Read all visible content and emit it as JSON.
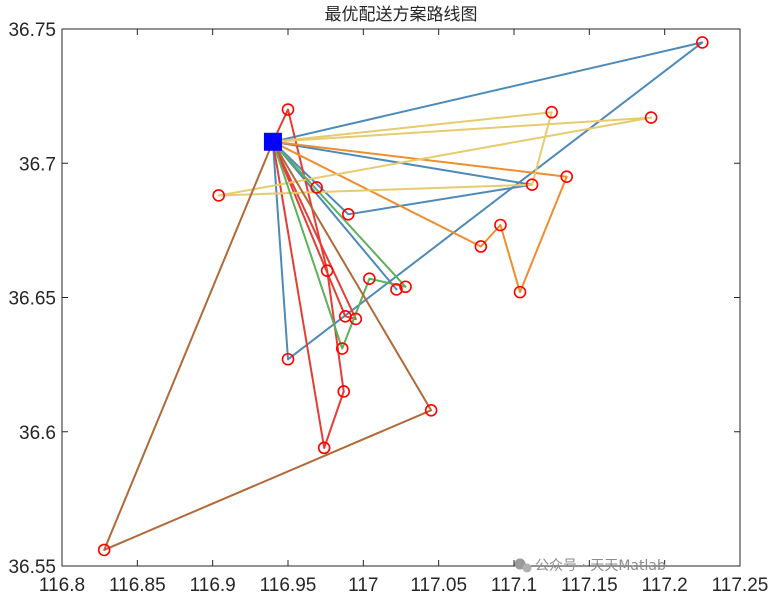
{
  "chart_data": {
    "type": "line",
    "title": "最优配送方案路线图",
    "xlabel": "",
    "ylabel": "",
    "xlim": [
      116.8,
      117.25
    ],
    "ylim": [
      36.55,
      36.75
    ],
    "xticks": [
      "116.8",
      "116.85",
      "116.9",
      "116.95",
      "117",
      "117.05",
      "117.1",
      "117.15",
      "117.2",
      "117.25"
    ],
    "yticks": [
      "36.55",
      "36.6",
      "36.65",
      "36.7",
      "36.75"
    ],
    "grid": false,
    "legend": "none",
    "depot": {
      "x": 116.94,
      "y": 36.708,
      "marker": "square",
      "color": "#0000ff"
    },
    "customers": [
      {
        "x": 117.225,
        "y": 36.745
      },
      {
        "x": 116.95,
        "y": 36.72
      },
      {
        "x": 117.125,
        "y": 36.719
      },
      {
        "x": 117.191,
        "y": 36.717
      },
      {
        "x": 117.135,
        "y": 36.695
      },
      {
        "x": 117.112,
        "y": 36.692
      },
      {
        "x": 116.969,
        "y": 36.691
      },
      {
        "x": 116.904,
        "y": 36.688
      },
      {
        "x": 116.99,
        "y": 36.681
      },
      {
        "x": 117.091,
        "y": 36.677
      },
      {
        "x": 117.078,
        "y": 36.669
      },
      {
        "x": 116.976,
        "y": 36.66
      },
      {
        "x": 117.004,
        "y": 36.657
      },
      {
        "x": 117.028,
        "y": 36.654
      },
      {
        "x": 117.022,
        "y": 36.653
      },
      {
        "x": 117.104,
        "y": 36.652
      },
      {
        "x": 116.988,
        "y": 36.643
      },
      {
        "x": 116.995,
        "y": 36.642
      },
      {
        "x": 116.986,
        "y": 36.631
      },
      {
        "x": 116.95,
        "y": 36.627
      },
      {
        "x": 116.987,
        "y": 36.615
      },
      {
        "x": 117.045,
        "y": 36.608
      },
      {
        "x": 116.974,
        "y": 36.594
      },
      {
        "x": 116.828,
        "y": 36.556
      }
    ],
    "series": [
      {
        "color": "#4d8ab8",
        "x": [
          116.94,
          117.225,
          116.95,
          116.94
        ],
        "y": [
          36.708,
          36.745,
          36.627,
          36.708
        ]
      },
      {
        "color": "#4d8ab8",
        "x": [
          116.94,
          117.022,
          116.94
        ],
        "y": [
          36.708,
          36.653,
          36.708
        ]
      },
      {
        "color": "#4d8ab8",
        "x": [
          116.94,
          117.112,
          116.99,
          116.94
        ],
        "y": [
          36.708,
          36.692,
          36.681,
          36.708
        ]
      },
      {
        "color": "#e53d35",
        "x": [
          116.94,
          116.95,
          116.976,
          116.987,
          116.974,
          116.94
        ],
        "y": [
          36.708,
          36.72,
          36.66,
          36.615,
          36.594,
          36.708
        ]
      },
      {
        "color": "#e53d35",
        "x": [
          116.94,
          116.988,
          116.995,
          116.94
        ],
        "y": [
          36.708,
          36.643,
          36.642,
          36.708
        ]
      },
      {
        "color": "#f08d2e",
        "x": [
          116.94,
          117.135,
          117.104,
          117.091,
          117.078,
          116.94
        ],
        "y": [
          36.708,
          36.695,
          36.652,
          36.677,
          36.669,
          36.708
        ]
      },
      {
        "color": "#e6cc6e",
        "x": [
          116.94,
          117.125,
          117.112,
          116.904,
          117.191,
          116.94
        ],
        "y": [
          36.708,
          36.719,
          36.692,
          36.688,
          36.717,
          36.708
        ]
      },
      {
        "color": "#5eb15b",
        "x": [
          116.94,
          117.028,
          117.004,
          116.986,
          116.94
        ],
        "y": [
          36.708,
          36.654,
          36.657,
          36.631,
          36.708
        ]
      },
      {
        "color": "#b06a3a",
        "x": [
          116.94,
          117.045,
          116.828,
          116.94
        ],
        "y": [
          36.708,
          36.608,
          36.556,
          36.708
        ]
      }
    ]
  },
  "watermark": {
    "icon": "wechat-icon",
    "text": "公众号 · 天天Matlab"
  }
}
